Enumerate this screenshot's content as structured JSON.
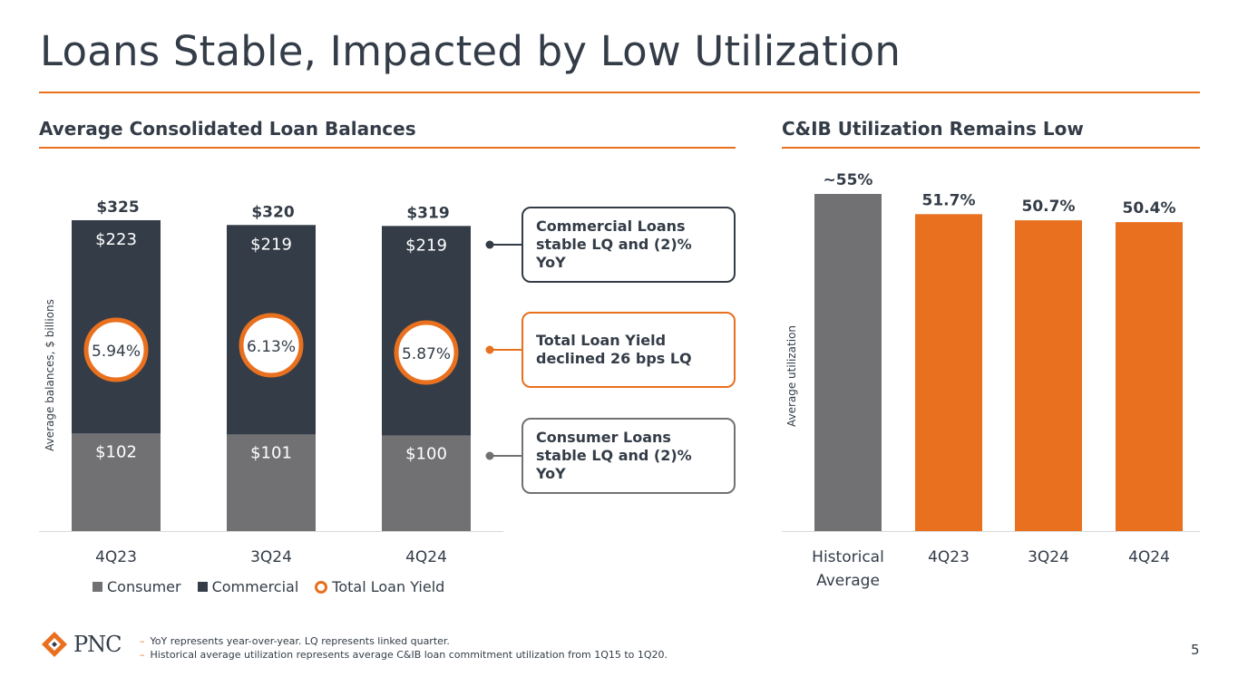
{
  "page": {
    "title": "Loans Stable, Impacted by Low Utilization",
    "number": "5"
  },
  "left_section": {
    "title": "Average Consolidated Loan Balances"
  },
  "right_section": {
    "title": "C&IB Utilization Remains Low"
  },
  "callouts": [
    {
      "line1": "Commercial Loans",
      "line2": "stable LQ and (2)% YoY"
    },
    {
      "line1": "Total Loan Yield",
      "line2": "declined 26 bps LQ"
    },
    {
      "line1": "Consumer Loans",
      "line2": "stable LQ and (2)% YoY"
    }
  ],
  "legend": {
    "consumer": "Consumer",
    "commercial": "Commercial",
    "yield": "Total Loan Yield"
  },
  "footnotes": [
    "YoY represents year-over-year. LQ represents linked quarter.",
    "Historical average utilization represents average C&IB loan commitment utilization from 1Q15 to 1Q20."
  ],
  "logo": {
    "text": "PNC"
  },
  "colors": {
    "orange": "#e8701e",
    "dark": "#333c47",
    "grey": "#717174"
  },
  "chart_data": [
    {
      "type": "bar",
      "stacked": true,
      "ylabel": "Average balances, $ billions",
      "categories": [
        "4Q23",
        "3Q24",
        "4Q24"
      ],
      "series": [
        {
          "name": "Consumer",
          "values": [
            102,
            101,
            100
          ],
          "labels": [
            "$102",
            "$101",
            "$100"
          ],
          "color": "#717174"
        },
        {
          "name": "Commercial",
          "values": [
            223,
            219,
            219
          ],
          "labels": [
            "$223",
            "$219",
            "$219"
          ],
          "color": "#333c47"
        }
      ],
      "totals": [
        325,
        320,
        319
      ],
      "total_labels": [
        "$325",
        "$320",
        "$319"
      ],
      "ylim": [
        0,
        325
      ],
      "overlay": {
        "name": "Total Loan Yield",
        "values": [
          5.94,
          6.13,
          5.87
        ],
        "labels": [
          "5.94%",
          "6.13%",
          "5.87%"
        ]
      }
    },
    {
      "type": "bar",
      "ylabel": "Average utilization",
      "categories": [
        "Historical\nAverage",
        "4Q23",
        "3Q24",
        "4Q24"
      ],
      "values": [
        55,
        51.7,
        50.7,
        50.4
      ],
      "labels": [
        "~55%",
        "51.7%",
        "50.7%",
        "50.4%"
      ],
      "colors": [
        "#717174",
        "#e8701e",
        "#e8701e",
        "#e8701e"
      ],
      "ylim": [
        0,
        55
      ]
    }
  ]
}
